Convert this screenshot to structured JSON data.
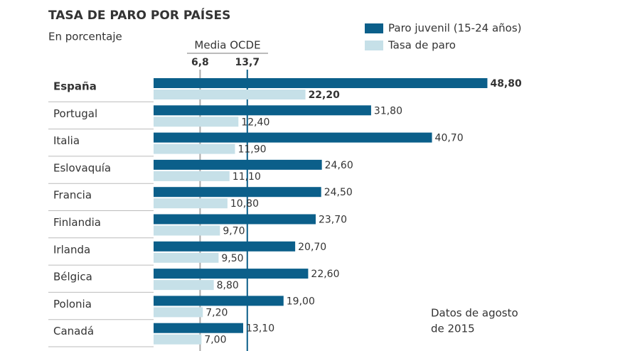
{
  "chart_data": {
    "type": "bar",
    "orientation": "horizontal",
    "title": "TASA DE PARO POR PAÍSES",
    "subtitle": "En porcentaje",
    "categories": [
      "España",
      "Portugal",
      "Italia",
      "Eslovaquía",
      "Francia",
      "Finlandia",
      "Irlanda",
      "Bélgica",
      "Polonia",
      "Canadá"
    ],
    "highlight_index": 0,
    "series": [
      {
        "name": "Paro juvenil (15-24 años)",
        "color": "#0b5f8a",
        "values": [
          48.8,
          31.8,
          40.7,
          24.6,
          24.5,
          23.7,
          20.7,
          22.6,
          19.0,
          13.1
        ],
        "value_labels": [
          "48,80",
          "31,80",
          "40,70",
          "24,60",
          "24,50",
          "23,70",
          "20,70",
          "22,60",
          "19,00",
          "13,10"
        ]
      },
      {
        "name": "Tasa de paro",
        "color": "#c6e0e8",
        "values": [
          22.2,
          12.4,
          11.9,
          11.1,
          10.8,
          9.7,
          9.5,
          8.8,
          7.2,
          7.0
        ],
        "value_labels": [
          "22,20",
          "12,40",
          "11,90",
          "11,10",
          "10,80",
          "9,70",
          "9,50",
          "8,80",
          "7,20",
          "7,00"
        ]
      }
    ],
    "xlim": [
      0,
      50
    ],
    "reference_header": "Media OCDE",
    "reference_lines": [
      {
        "value": 6.8,
        "label": "6,8",
        "color": "#aaaaaa"
      },
      {
        "value": 13.7,
        "label": "13,7",
        "color": "#0b5f8a"
      }
    ],
    "note": [
      "Datos de agosto",
      "de 2015"
    ]
  }
}
